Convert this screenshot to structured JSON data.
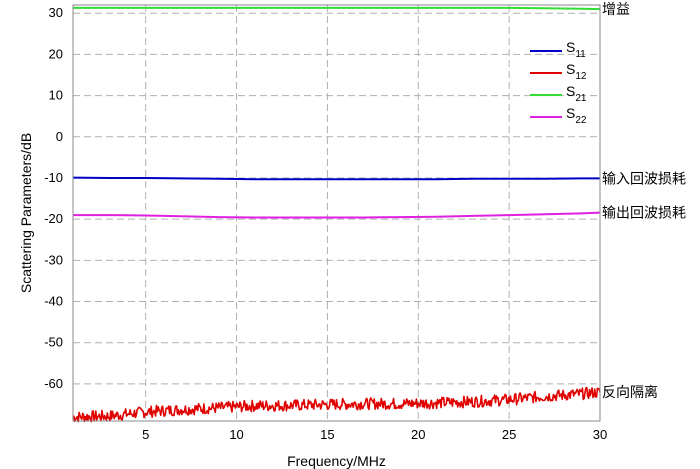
{
  "chart_data": {
    "type": "line",
    "title": "",
    "xlabel": "Frequency/MHz",
    "ylabel": "Scattering Parameters/dB",
    "xlim": [
      1,
      30
    ],
    "ylim": [
      -69,
      32
    ],
    "xticks": [
      5,
      10,
      15,
      20,
      25,
      30
    ],
    "yticks": [
      30,
      20,
      10,
      0,
      -10,
      -20,
      -30,
      -40,
      -50,
      -60
    ],
    "xtick_labels": [
      "5",
      "10",
      "15",
      "20",
      "25",
      "30"
    ],
    "ytick_labels": [
      "30",
      "20",
      "10",
      "0",
      "-10",
      "-20",
      "-30",
      "-40",
      "-50",
      "-60"
    ],
    "grid": true,
    "legend_position": "top-right",
    "x": [
      1,
      3,
      5,
      7,
      9,
      11,
      13,
      15,
      17,
      19,
      21,
      23,
      25,
      27,
      29,
      30
    ],
    "series": [
      {
        "name": "S11",
        "base": "S",
        "sub": "11",
        "color": "#0000c8",
        "values": [
          -9.9,
          -10.0,
          -10.0,
          -10.1,
          -10.2,
          -10.3,
          -10.3,
          -10.3,
          -10.3,
          -10.3,
          -10.3,
          -10.2,
          -10.2,
          -10.2,
          -10.1,
          -10.1
        ]
      },
      {
        "name": "S12",
        "base": "S",
        "sub": "12",
        "color": "#e00000",
        "noisy": true,
        "values": [
          -68.0,
          -67.8,
          -66.8,
          -66.2,
          -65.8,
          -65.3,
          -65.2,
          -65.0,
          -64.8,
          -64.8,
          -64.6,
          -64.3,
          -63.8,
          -63.0,
          -62.4,
          -62.0
        ]
      },
      {
        "name": "S21",
        "base": "S",
        "sub": "21",
        "color": "#33dd33",
        "values": [
          31.3,
          31.3,
          31.3,
          31.3,
          31.3,
          31.3,
          31.3,
          31.3,
          31.3,
          31.3,
          31.3,
          31.3,
          31.3,
          31.2,
          31.1,
          31.0
        ]
      },
      {
        "name": "S22",
        "base": "S",
        "sub": "22",
        "color": "#e020e0",
        "values": [
          -19.0,
          -19.0,
          -19.1,
          -19.3,
          -19.5,
          -19.6,
          -19.6,
          -19.6,
          -19.6,
          -19.5,
          -19.4,
          -19.2,
          -19.0,
          -18.8,
          -18.6,
          -18.4
        ]
      }
    ],
    "annotations": [
      {
        "text": "增益",
        "series": "S21"
      },
      {
        "text": "输入回波损耗",
        "series": "S11"
      },
      {
        "text": "输出回波损耗",
        "series": "S22"
      },
      {
        "text": "反向隔离",
        "series": "S12"
      }
    ]
  }
}
